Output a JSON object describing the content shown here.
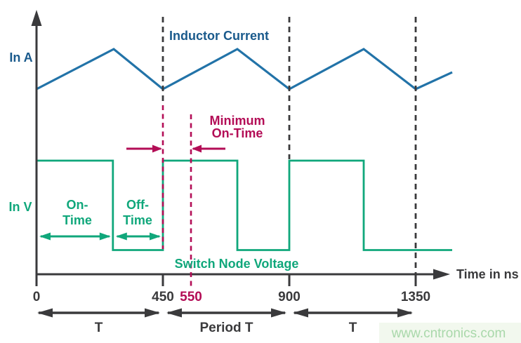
{
  "colors": {
    "dark": "#3a3a3c",
    "blue_line": "#2273a8",
    "blue_text": "#1a5a8c",
    "green": "#10a77b",
    "crimson": "#b30d56",
    "watermark_text": "#a9d8aa",
    "watermark_bg": "#f2f8ee"
  },
  "axes": {
    "y_label_top": "In A",
    "y_label_bottom": "In V",
    "x_label": "Time in ns",
    "ticks": [
      {
        "t": 0,
        "label": "0",
        "crimson": false
      },
      {
        "t": 450,
        "label": "450",
        "crimson": false
      },
      {
        "t": 550,
        "label": "550",
        "crimson": true
      },
      {
        "t": 900,
        "label": "900",
        "crimson": false
      },
      {
        "t": 1350,
        "label": "1350",
        "crimson": false
      }
    ]
  },
  "labels": {
    "inductor_current": "Inductor Current",
    "switch_node_voltage": "Switch Node Voltage",
    "minimum_on_time_line1": "Minimum",
    "minimum_on_time_line2": "On-Time",
    "on_time_line1": "On-",
    "on_time_line2": "Time",
    "off_time_line1": "Off-",
    "off_time_line2": "Time"
  },
  "watermark": "www.cntronics.com",
  "chart_data": {
    "type": "line",
    "xlabel": "Time in ns",
    "x_ticks": [
      0,
      450,
      550,
      900,
      1350
    ],
    "x_range": [
      0,
      1480
    ],
    "grid": false,
    "series": [
      {
        "name": "Inductor Current",
        "ylabel": "In A",
        "shape": "triangle-wave",
        "x": [
          0,
          275,
          450,
          715,
          900,
          1165,
          1350,
          1480
        ],
        "y": [
          0,
          1,
          0,
          1,
          0,
          1,
          0,
          0.42
        ]
      },
      {
        "name": "Switch Node Voltage",
        "ylabel": "In V",
        "shape": "square-wave",
        "steps": [
          [
            0,
            1
          ],
          [
            272,
            0
          ],
          [
            450,
            1
          ],
          [
            715,
            0
          ],
          [
            900,
            1
          ],
          [
            1165,
            0
          ]
        ],
        "x_end": 1480
      }
    ],
    "annotations": {
      "period_boundaries": [
        450,
        900,
        1350
      ],
      "minimum_on_time": {
        "from": 450,
        "to": 550
      },
      "on_time": {
        "from": 0,
        "to": 272
      },
      "off_time": {
        "from": 272,
        "to": 450
      },
      "bottom_spans": [
        {
          "from": 0,
          "to": 450,
          "label": "T"
        },
        {
          "from": 450,
          "to": 900,
          "label": "Period T"
        },
        {
          "from": 900,
          "to": 1350,
          "label": "T"
        }
      ]
    }
  }
}
